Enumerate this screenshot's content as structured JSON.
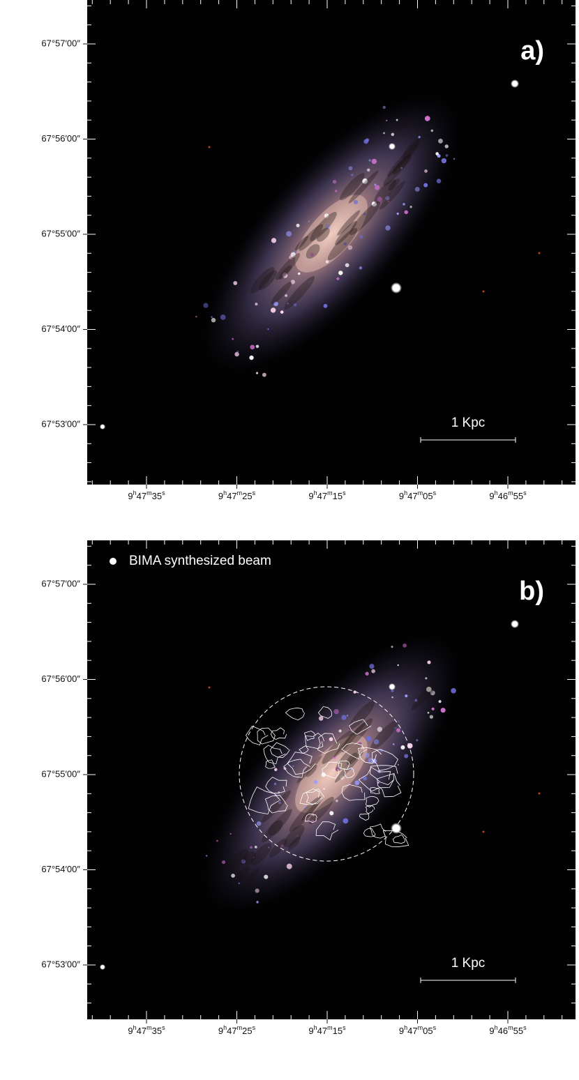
{
  "panels": [
    {
      "label": "a)",
      "scale_bar": "1 Kpc",
      "y_labels": [
        "67°57′00″",
        "67°56′00″",
        "67°55′00″",
        "67°54′00″",
        "67°53′00″"
      ],
      "x_labels": [
        [
          "9",
          "h",
          "47",
          "m",
          "35",
          "s"
        ],
        [
          "9",
          "h",
          "47",
          "m",
          "25",
          "s"
        ],
        [
          "9",
          "h",
          "47",
          "m",
          "15",
          "s"
        ],
        [
          "9",
          "h",
          "47",
          "m",
          "05",
          "s"
        ],
        [
          "9",
          "h",
          "46",
          "m",
          "55",
          "s"
        ]
      ]
    },
    {
      "label": "b)",
      "scale_bar": "1 Kpc",
      "legend": "BIMA synthesized beam",
      "y_labels": [
        "67°57′00″",
        "67°56′00″",
        "67°55′00″",
        "67°54′00″",
        "67°53′00″"
      ],
      "x_labels": [
        [
          "9",
          "h",
          "47",
          "m",
          "35",
          "s"
        ],
        [
          "9",
          "h",
          "47",
          "m",
          "25",
          "s"
        ],
        [
          "9",
          "h",
          "47",
          "m",
          "15",
          "s"
        ],
        [
          "9",
          "h",
          "47",
          "m",
          "05",
          "s"
        ],
        [
          "9",
          "h",
          "46",
          "m",
          "55",
          "s"
        ]
      ]
    }
  ]
}
